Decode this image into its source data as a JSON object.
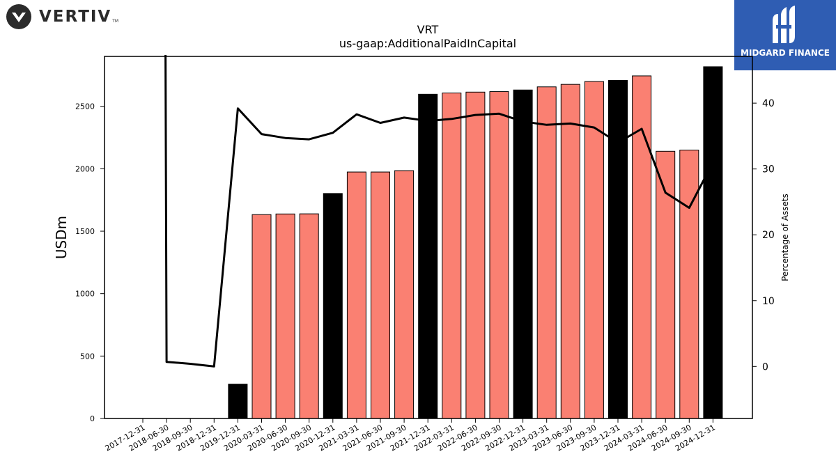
{
  "branding": {
    "company_name": "VERTIV",
    "trademark": "TM",
    "publisher_name": "MIDGARD FINANCE",
    "colors": {
      "publisher_bg": "#2f5db3",
      "company_text": "#2b2b2b"
    }
  },
  "chart_data": {
    "type": "bar",
    "title": "VRT",
    "subtitle": "us-gaap:AdditionalPaidInCapital",
    "ylabel": "USDm",
    "y2label": "Percentage of Assets",
    "ylim": [
      0,
      2900
    ],
    "y2lim": [
      -7.9,
      47.1
    ],
    "yticks": [
      0,
      500,
      1000,
      1500,
      2000,
      2500
    ],
    "y2ticks": [
      0,
      10,
      20,
      30,
      40
    ],
    "grid": false,
    "legend": "none",
    "colors": {
      "annual": "#000000",
      "quarterly": "#fa8072",
      "line": "#000000"
    },
    "categories": [
      "2017-12-31",
      "2018-06-30",
      "2018-09-30",
      "2018-12-31",
      "2019-12-31",
      "2020-03-31",
      "2020-06-30",
      "2020-09-30",
      "2020-12-31",
      "2021-03-31",
      "2021-06-30",
      "2021-09-30",
      "2021-12-31",
      "2022-03-31",
      "2022-06-30",
      "2022-09-30",
      "2022-12-31",
      "2023-03-31",
      "2023-06-30",
      "2023-09-30",
      "2023-12-31",
      "2024-03-31",
      "2024-06-30",
      "2024-09-30",
      "2024-12-31"
    ],
    "series": [
      {
        "kind": "bar",
        "axis": "left",
        "values": [
          0,
          0,
          0,
          0,
          275,
          1633,
          1638,
          1639,
          1802,
          1974,
          1974,
          1985,
          2597,
          2607,
          2614,
          2618,
          2631,
          2656,
          2676,
          2699,
          2708,
          2744,
          2140,
          2150,
          2817
        ],
        "period": [
          "annual",
          "quarterly",
          "quarterly",
          "annual",
          "annual",
          "quarterly",
          "quarterly",
          "quarterly",
          "annual",
          "quarterly",
          "quarterly",
          "quarterly",
          "annual",
          "quarterly",
          "quarterly",
          "quarterly",
          "annual",
          "quarterly",
          "quarterly",
          "quarterly",
          "annual",
          "quarterly",
          "quarterly",
          "quarterly",
          "annual"
        ]
      },
      {
        "kind": "line",
        "axis": "right",
        "values": [
          null,
          0.7,
          0.4,
          0.0,
          39.2,
          35.3,
          34.7,
          34.5,
          35.5,
          38.3,
          37.0,
          37.8,
          37.3,
          37.6,
          38.2,
          38.4,
          37.2,
          36.7,
          36.9,
          36.3,
          34.0,
          36.1,
          26.4,
          24.1,
          31.0
        ],
        "start_above_axis": true
      }
    ]
  }
}
